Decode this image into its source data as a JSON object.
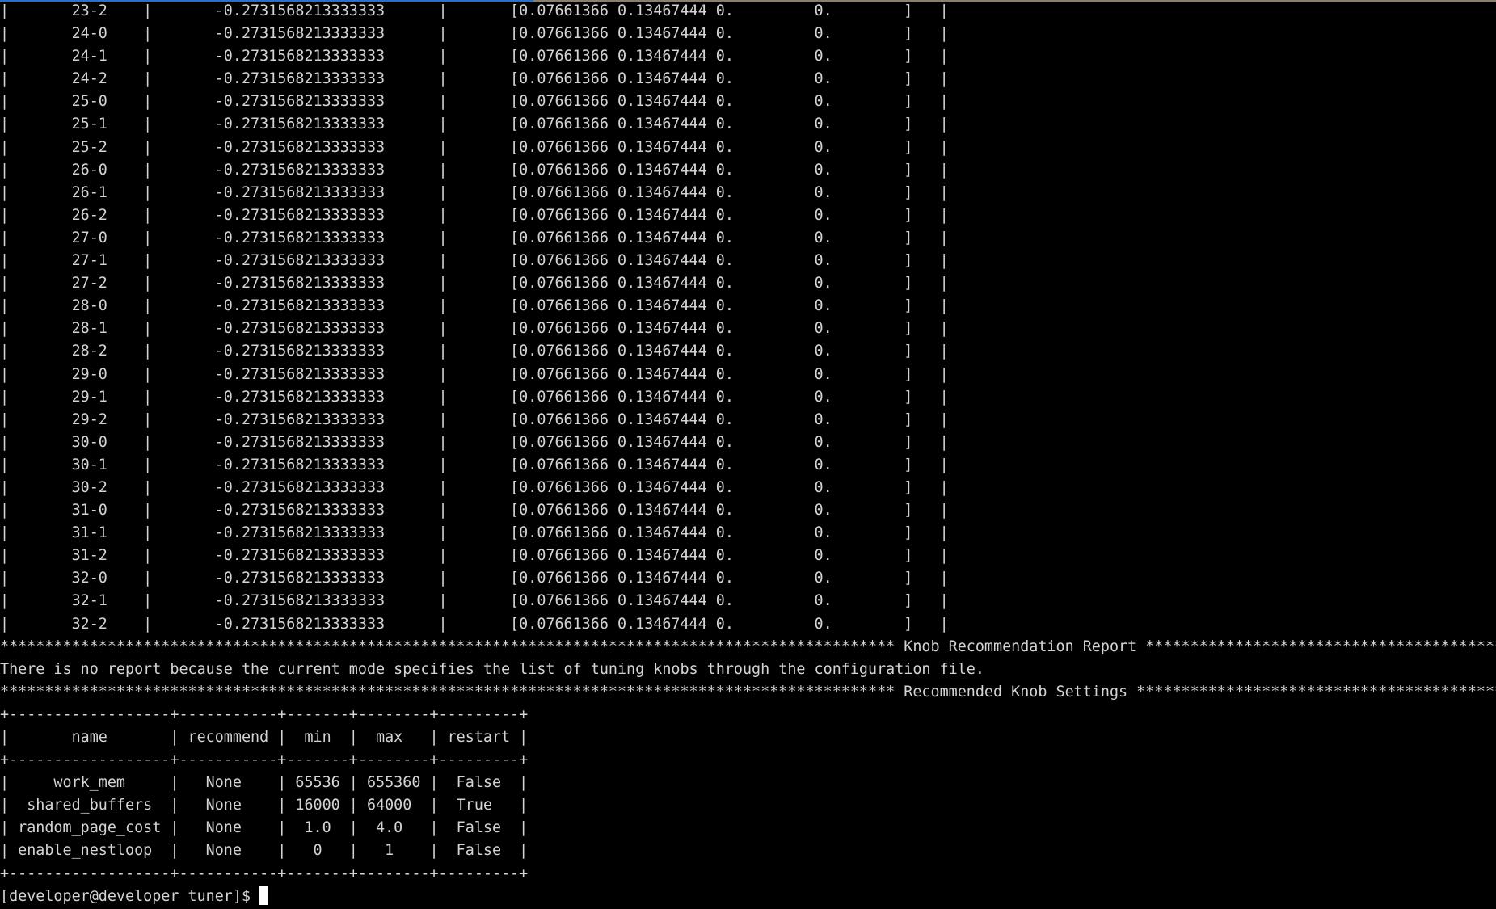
{
  "terminal": {
    "result_rows": [
      {
        "id": "23-2",
        "score": "-0.2731568213333333",
        "vector": "[0.07661366 0.13467444 0.         0.        ]"
      },
      {
        "id": "24-0",
        "score": "-0.2731568213333333",
        "vector": "[0.07661366 0.13467444 0.         0.        ]"
      },
      {
        "id": "24-1",
        "score": "-0.2731568213333333",
        "vector": "[0.07661366 0.13467444 0.         0.        ]"
      },
      {
        "id": "24-2",
        "score": "-0.2731568213333333",
        "vector": "[0.07661366 0.13467444 0.         0.        ]"
      },
      {
        "id": "25-0",
        "score": "-0.2731568213333333",
        "vector": "[0.07661366 0.13467444 0.         0.        ]"
      },
      {
        "id": "25-1",
        "score": "-0.2731568213333333",
        "vector": "[0.07661366 0.13467444 0.         0.        ]"
      },
      {
        "id": "25-2",
        "score": "-0.2731568213333333",
        "vector": "[0.07661366 0.13467444 0.         0.        ]"
      },
      {
        "id": "26-0",
        "score": "-0.2731568213333333",
        "vector": "[0.07661366 0.13467444 0.         0.        ]"
      },
      {
        "id": "26-1",
        "score": "-0.2731568213333333",
        "vector": "[0.07661366 0.13467444 0.         0.        ]"
      },
      {
        "id": "26-2",
        "score": "-0.2731568213333333",
        "vector": "[0.07661366 0.13467444 0.         0.        ]"
      },
      {
        "id": "27-0",
        "score": "-0.2731568213333333",
        "vector": "[0.07661366 0.13467444 0.         0.        ]"
      },
      {
        "id": "27-1",
        "score": "-0.2731568213333333",
        "vector": "[0.07661366 0.13467444 0.         0.        ]"
      },
      {
        "id": "27-2",
        "score": "-0.2731568213333333",
        "vector": "[0.07661366 0.13467444 0.         0.        ]"
      },
      {
        "id": "28-0",
        "score": "-0.2731568213333333",
        "vector": "[0.07661366 0.13467444 0.         0.        ]"
      },
      {
        "id": "28-1",
        "score": "-0.2731568213333333",
        "vector": "[0.07661366 0.13467444 0.         0.        ]"
      },
      {
        "id": "28-2",
        "score": "-0.2731568213333333",
        "vector": "[0.07661366 0.13467444 0.         0.        ]"
      },
      {
        "id": "29-0",
        "score": "-0.2731568213333333",
        "vector": "[0.07661366 0.13467444 0.         0.        ]"
      },
      {
        "id": "29-1",
        "score": "-0.2731568213333333",
        "vector": "[0.07661366 0.13467444 0.         0.        ]"
      },
      {
        "id": "29-2",
        "score": "-0.2731568213333333",
        "vector": "[0.07661366 0.13467444 0.         0.        ]"
      },
      {
        "id": "30-0",
        "score": "-0.2731568213333333",
        "vector": "[0.07661366 0.13467444 0.         0.        ]"
      },
      {
        "id": "30-1",
        "score": "-0.2731568213333333",
        "vector": "[0.07661366 0.13467444 0.         0.        ]"
      },
      {
        "id": "30-2",
        "score": "-0.2731568213333333",
        "vector": "[0.07661366 0.13467444 0.         0.        ]"
      },
      {
        "id": "31-0",
        "score": "-0.2731568213333333",
        "vector": "[0.07661366 0.13467444 0.         0.        ]"
      },
      {
        "id": "31-1",
        "score": "-0.2731568213333333",
        "vector": "[0.07661366 0.13467444 0.         0.        ]"
      },
      {
        "id": "31-2",
        "score": "-0.2731568213333333",
        "vector": "[0.07661366 0.13467444 0.         0.        ]"
      },
      {
        "id": "32-0",
        "score": "-0.2731568213333333",
        "vector": "[0.07661366 0.13467444 0.         0.        ]"
      },
      {
        "id": "32-1",
        "score": "-0.2731568213333333",
        "vector": "[0.07661366 0.13467444 0.         0.        ]"
      },
      {
        "id": "32-2",
        "score": "-0.2731568213333333",
        "vector": "[0.07661366 0.13467444 0.         0.        ]"
      }
    ],
    "report_heading": "Knob Recommendation Report",
    "report_message": "There is no report because the current mode specifies the list of tuning knobs through the configuration file.",
    "settings_heading": "Recommended Knob Settings",
    "knob_table": {
      "headers": [
        "name",
        "recommend",
        "min",
        "max",
        "restart"
      ],
      "rows": [
        [
          "work_mem",
          "None",
          "65536",
          "655360",
          "False"
        ],
        [
          "shared_buffers",
          "None",
          "16000",
          "64000",
          "True"
        ],
        [
          "random_page_cost",
          "None",
          "1.0",
          "4.0",
          "False"
        ],
        [
          "enable_nestloop",
          "None",
          "0",
          "1",
          "False"
        ]
      ]
    },
    "prompt": "[developer@developer tuner]$ "
  }
}
